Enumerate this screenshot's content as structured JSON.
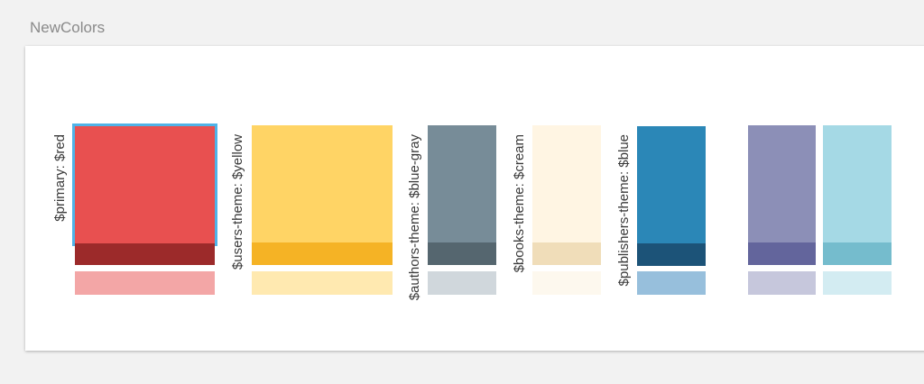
{
  "frame": {
    "title": "NewColors"
  },
  "swatches": [
    {
      "name": "primary",
      "label": "$primary: $red",
      "base": "#e85050",
      "dark": "#9c2a2a",
      "light": "#f3a6a6",
      "selected": true
    },
    {
      "name": "users",
      "label": "$users-theme: $yellow",
      "base": "#ffd465",
      "dark": "#f5b325",
      "light": "#ffe9b0",
      "selected": false
    },
    {
      "name": "authors",
      "label": "$authors-theme: $blue-gray",
      "base": "#778c98",
      "dark": "#55666f",
      "light": "#d0d7dc",
      "selected": false
    },
    {
      "name": "books",
      "label": "$books-theme: $cream",
      "base": "#fff5e3",
      "dark": "#f0ddb9",
      "light": "#fdf8ee",
      "selected": false
    },
    {
      "name": "publishers",
      "label": "$publishers-theme: $blue",
      "base": "#2b87b7",
      "dark": "#1c5378",
      "light": "#97bfdc",
      "selected": false
    },
    {
      "name": "purple",
      "label": "",
      "base": "#8c8fb7",
      "dark": "#63659c",
      "light": "#c6c7dc",
      "selected": false
    },
    {
      "name": "cyan",
      "label": "",
      "base": "#a5d9e5",
      "dark": "#75bccd",
      "light": "#d3ecf2",
      "selected": false
    }
  ]
}
